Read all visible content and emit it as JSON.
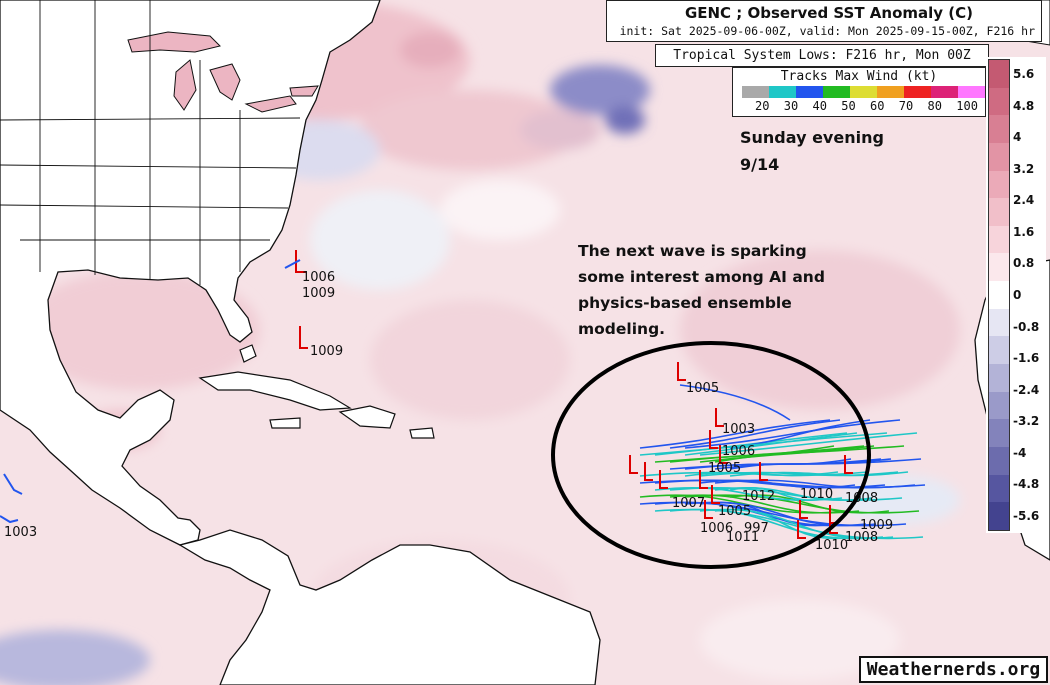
{
  "map_title": "GENC ; Observed SST Anomaly (C)",
  "run_info": "init: Sat 2025-09-06-00Z, valid: Mon 2025-09-15-00Z, F216 hr",
  "lows_label": "Tropical System Lows: F216 hr, Mon 00Z",
  "tracks_legend": {
    "title": "Tracks Max Wind (kt)",
    "colors": [
      "#a9a9a9",
      "#1fc7c7",
      "#2255ee",
      "#22bb22",
      "#dddd33",
      "#f0a020",
      "#ee2222",
      "#dd2277",
      "#ff77ff"
    ],
    "ticks": [
      "20",
      "30",
      "40",
      "50",
      "60",
      "70",
      "80",
      "100"
    ]
  },
  "colorbar": {
    "labels": [
      "5.6",
      "4.8",
      "4",
      "3.2",
      "2.4",
      "1.6",
      "0.8",
      "0",
      "-0.8",
      "-1.6",
      "-2.4",
      "-3.2",
      "-4",
      "-4.8",
      "-5.6"
    ],
    "colors": [
      "#c45a72",
      "#cf6b82",
      "#d87f93",
      "#e294a5",
      "#ebaab8",
      "#f1bfc9",
      "#f7d4db",
      "#fbe8ec",
      "#ffffff",
      "#e6e6f3",
      "#cdcde6",
      "#b3b3d7",
      "#9a9ac9",
      "#8383bb",
      "#6c6cad",
      "#5656a0",
      "#43438f"
    ]
  },
  "annotations": {
    "date_line1": "Sunday evening",
    "date_line2": "9/14",
    "wave_note": "The next wave is sparking some interest among AI and physics-based ensemble modeling."
  },
  "pressure_labels": {
    "northwest": [
      "1006",
      "1009",
      "1009"
    ],
    "pacific": [
      "1003"
    ],
    "cluster": [
      "1005",
      "1003",
      "1006",
      "1005",
      "1010",
      "1008",
      "1009",
      "1008",
      "1010",
      "1005",
      "1006",
      "997",
      "1011",
      "1012",
      "1007"
    ]
  },
  "watermark": "Weathernerds.org"
}
